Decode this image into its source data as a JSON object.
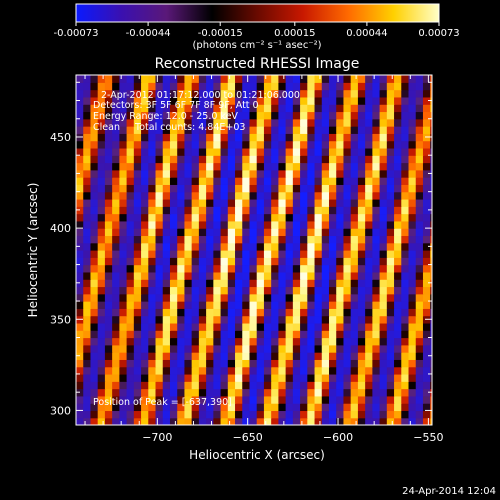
{
  "colorbar": {
    "tick_labels": [
      "-0.00073",
      "-0.00044",
      "-0.00015",
      "0.00015",
      "0.00044",
      "0.00073"
    ],
    "tick_values": [
      -0.00073,
      -0.00044,
      -0.00015,
      0.00015,
      0.00044,
      0.00073
    ],
    "range": [
      -0.00073,
      0.00073
    ],
    "units_label": "(photons cm⁻² s⁻¹ asec⁻²)",
    "colors": [
      "#0a1aff",
      "#3a10b0",
      "#5a1878",
      "#000000",
      "#6a0a00",
      "#c81800",
      "#ff6a00",
      "#ffd000",
      "#ffffc8"
    ]
  },
  "chart_data": {
    "type": "heatmap",
    "title": "Reconstructed RHESSI Image",
    "xlabel": "Heliocentric X (arcsec)",
    "ylabel": "Heliocentric Y (arcsec)",
    "xlim": [
      -745,
      -548
    ],
    "ylim": [
      292,
      484
    ],
    "x_ticks": [
      -700,
      -650,
      -600,
      -550
    ],
    "x_tick_labels": [
      "−700",
      "−650",
      "−600",
      "−550"
    ],
    "y_ticks": [
      300,
      350,
      400,
      450
    ],
    "y_tick_labels": [
      "300",
      "350",
      "400",
      "450"
    ],
    "pixel_size_arcsec": 4,
    "stripe_spacing_arcsec": 23,
    "stripe_slope_x_per_y": 0.26,
    "peak": [
      -637,
      390
    ],
    "annotations": [
      "2-Apr-2012 01:17:12.000 to 01:21:06.000",
      "Detectors: 3F 5F 6F 7F 8F 9F, Att 0",
      "Energy Range: 12.0 - 25.0 keV",
      "Clean     Total counts: 4.84E+03",
      "Position of Peak = [-637,390]"
    ]
  },
  "footer": {
    "timestamp": "24-Apr-2014 12:04"
  }
}
